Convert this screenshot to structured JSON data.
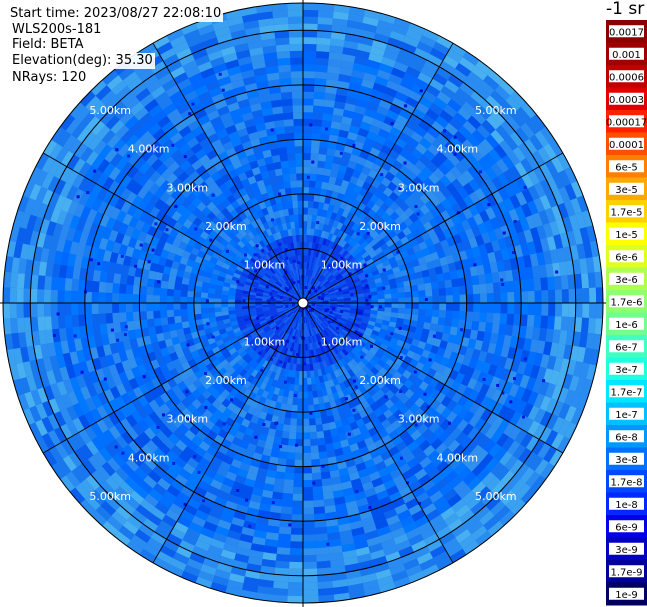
{
  "header": {
    "start_time": "Start time: 2023/08/27 22:08:10",
    "instrument": "WLS200s-181",
    "field": "Field: BETA",
    "elevation": "Elevation(deg): 35.30",
    "nrays": "NRays: 120"
  },
  "unit_label": "-1 sr",
  "chart_data": {
    "type": "heatmap",
    "projection": "polar (PPI scan)",
    "field": "BETA",
    "elevation_deg": 35.3,
    "n_rays": 120,
    "range_km": [
      0,
      5.5
    ],
    "range_rings_km": [
      1,
      2,
      3,
      4,
      5
    ],
    "ring_labels": [
      "1.00km",
      "2.00km",
      "3.00km",
      "4.00km",
      "5.00km"
    ],
    "azimuth_spokes_deg": [
      0,
      30,
      60,
      90,
      120,
      150,
      180,
      210,
      240,
      270,
      300,
      330
    ],
    "color_scale": "log",
    "colorbar": {
      "labels": [
        "0.0017",
        "0.001",
        "0.0006",
        "0.0003",
        "0.00017",
        "0.0001",
        "6e-5",
        "3e-5",
        "1.7e-5",
        "1e-5",
        "6e-6",
        "3e-6",
        "1.7e-6",
        "1e-6",
        "6e-7",
        "3e-7",
        "1.7e-7",
        "1e-7",
        "6e-8",
        "3e-8",
        "1.7e-8",
        "1e-8",
        "6e-9",
        "3e-9",
        "1.7e-9",
        "1e-9"
      ],
      "colors": [
        "#8b0000",
        "#a00000",
        "#c00000",
        "#e00000",
        "#ff2000",
        "#ff5000",
        "#ff8000",
        "#ffa800",
        "#ffd000",
        "#ffff00",
        "#e0ff20",
        "#b0ff50",
        "#90ff70",
        "#70ff90",
        "#40ffc0",
        "#20ffe0",
        "#00e8ff",
        "#00c0ff",
        "#0098ff",
        "#0070ff",
        "#0048ff",
        "#0028ff",
        "#0000e8",
        "#0000c0",
        "#000098",
        "#000060"
      ]
    },
    "dominant_value_range": [
      "3e-8",
      "1e-8"
    ]
  }
}
